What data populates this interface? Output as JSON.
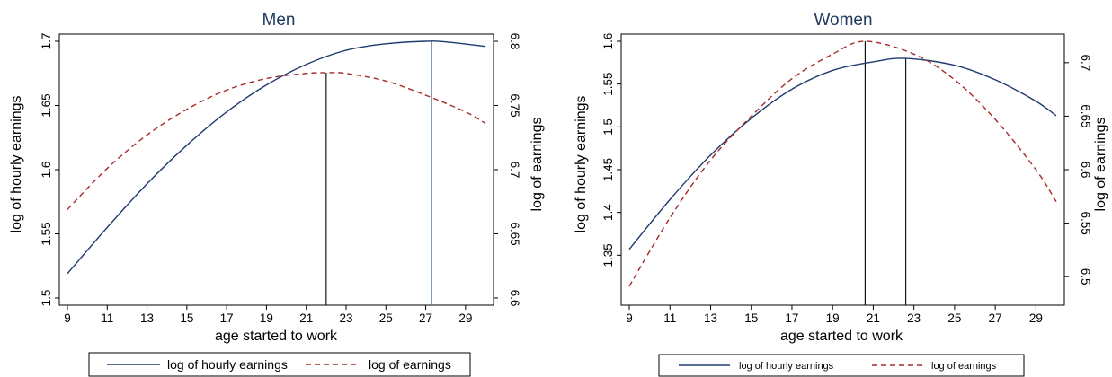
{
  "chart_data": [
    {
      "type": "line",
      "title": "Men",
      "xlabel": "age started to work",
      "ylabel_left": "log of hourly earnings",
      "ylabel_right": "log of earnings",
      "xlim": [
        9,
        30
      ],
      "x_ticks": [
        9,
        11,
        13,
        15,
        17,
        19,
        21,
        23,
        25,
        27,
        29
      ],
      "ylim_left": [
        1.5,
        1.7
      ],
      "yticks_left": [
        1.5,
        1.55,
        1.6,
        1.65,
        1.7
      ],
      "ylim_right": [
        6.6,
        6.8
      ],
      "yticks_right": [
        6.6,
        6.65,
        6.7,
        6.75,
        6.8
      ],
      "grid": false,
      "legend": "bottom",
      "series": [
        {
          "name": "log of hourly earnings",
          "axis": "left",
          "style": "solid",
          "color": "#1f3b6e",
          "x": [
            9,
            11,
            13,
            15,
            17,
            19,
            21,
            23,
            25,
            27,
            28,
            30
          ],
          "y": [
            1.519,
            1.555,
            1.589,
            1.619,
            1.645,
            1.666,
            1.682,
            1.693,
            1.698,
            1.7,
            1.6995,
            1.696
          ]
        },
        {
          "name": "log of earnings",
          "axis": "right",
          "style": "dashed",
          "color": "#a52a2a",
          "x": [
            9,
            11,
            13,
            15,
            17,
            19,
            21,
            22,
            23,
            25,
            27,
            29,
            30
          ],
          "y": [
            6.669,
            6.701,
            6.727,
            6.747,
            6.762,
            6.771,
            6.775,
            6.7755,
            6.775,
            6.769,
            6.758,
            6.745,
            6.736
          ]
        }
      ],
      "vlines": [
        {
          "x": 22.0,
          "color": "#000000"
        },
        {
          "x": 27.3,
          "color": "#5a7fa0"
        }
      ]
    },
    {
      "type": "line",
      "title": "Women",
      "xlabel": "age started to work",
      "ylabel_left": "log of hourly earnings",
      "ylabel_right": "log of earnings",
      "xlim": [
        9,
        30
      ],
      "x_ticks": [
        9,
        11,
        13,
        15,
        17,
        19,
        21,
        23,
        25,
        27,
        29
      ],
      "ylim_left": [
        1.3,
        1.6
      ],
      "yticks_left": [
        1.35,
        1.4,
        1.45,
        1.5,
        1.55,
        1.6
      ],
      "ylim_right": [
        6.48,
        6.72
      ],
      "yticks_right": [
        6.5,
        6.55,
        6.6,
        6.65,
        6.7
      ],
      "grid": false,
      "legend": "bottom",
      "series": [
        {
          "name": "log of hourly earnings",
          "axis": "left",
          "style": "solid",
          "color": "#1f3b6e",
          "x": [
            9,
            11,
            13,
            15,
            17,
            19,
            21,
            22.6,
            25,
            27,
            29,
            30
          ],
          "y": [
            1.357,
            1.415,
            1.467,
            1.51,
            1.544,
            1.566,
            1.576,
            1.58,
            1.572,
            1.555,
            1.53,
            1.513
          ]
        },
        {
          "name": "log of earnings",
          "axis": "right",
          "style": "dashed",
          "color": "#a52a2a",
          "x": [
            9,
            11,
            13,
            15,
            17,
            19,
            20.6,
            23,
            25,
            27,
            29,
            30
          ],
          "y": [
            6.491,
            6.555,
            6.609,
            6.65,
            6.685,
            6.708,
            6.72,
            6.708,
            6.684,
            6.647,
            6.6,
            6.57
          ]
        }
      ],
      "vlines": [
        {
          "x": 20.6,
          "color": "#000000"
        },
        {
          "x": 22.6,
          "color": "#000000"
        }
      ]
    }
  ]
}
